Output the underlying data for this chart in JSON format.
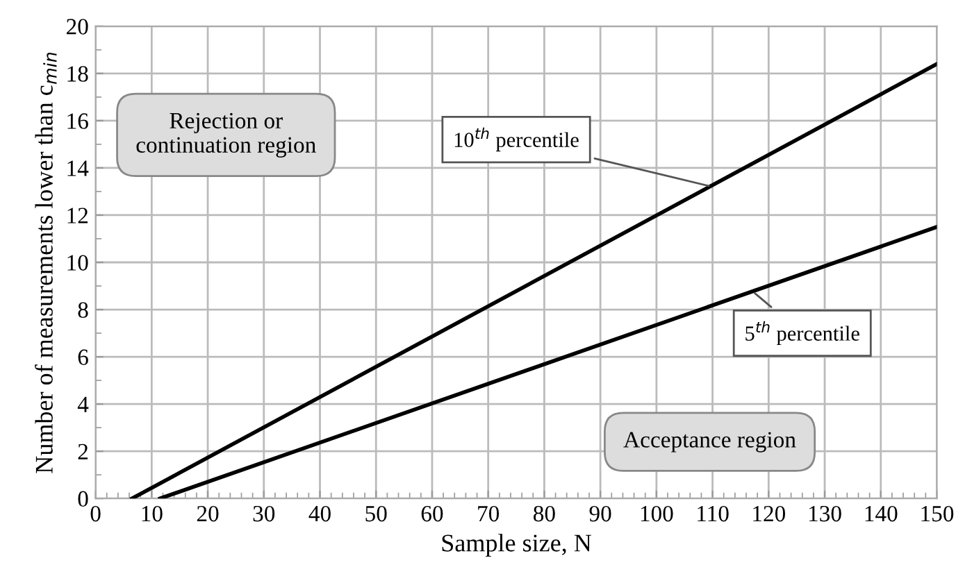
{
  "chart_data": {
    "type": "line",
    "xlabel": "Sample size, N",
    "ylabel": "Number of measurements lower than c$_{min}$",
    "series": [
      {
        "color": "#000000",
        "x": [
          6.5,
          150
        ],
        "values": [
          0,
          18.4
        ]
      },
      {
        "color": "#000000",
        "x": [
          11.5,
          150
        ],
        "values": [
          0,
          11.5
        ]
      }
    ],
    "xlim": [
      0,
      150
    ],
    "ylim": [
      0,
      20
    ],
    "xticks": [
      0,
      10,
      20,
      30,
      40,
      50,
      60,
      70,
      80,
      90,
      100,
      110,
      120,
      130,
      140,
      150
    ],
    "yticks": [
      0,
      2,
      4,
      6,
      8,
      10,
      12,
      14,
      16,
      18,
      20
    ],
    "grid": true,
    "legend": false,
    "marker": "none",
    "line_style": "solid",
    "annotations": [
      {
        "text": "10$^{th}$ percentile",
        "x": 110,
        "y": 13.2
      },
      {
        "text": "5$^{th}$ percentile",
        "x": 117,
        "y": 8.8
      },
      "Rejection or\ncontinuation region",
      "Acceptance region"
    ]
  }
}
